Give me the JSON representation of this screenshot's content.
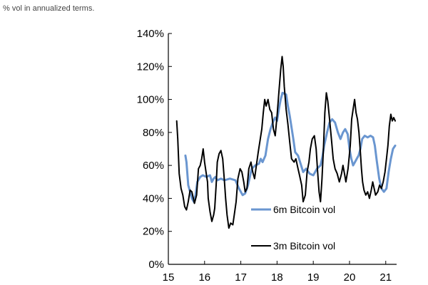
{
  "chart_data": {
    "type": "line",
    "subtitle": "% vol in annualized terms.",
    "title": "",
    "xlabel": "",
    "ylabel": "",
    "xlim": [
      15.0,
      21.3
    ],
    "ylim": [
      0,
      140
    ],
    "x_ticks": [
      15,
      16,
      17,
      18,
      19,
      20,
      21
    ],
    "x_tick_labels": [
      "15",
      "16",
      "17",
      "18",
      "19",
      "20",
      "21"
    ],
    "y_ticks": [
      0,
      20,
      40,
      60,
      80,
      100,
      120,
      140
    ],
    "y_tick_labels": [
      "0%",
      "20%",
      "40%",
      "60%",
      "80%",
      "100%",
      "120%",
      "140%"
    ],
    "grid": false,
    "legend_placement": "bottom-right inside",
    "series": [
      {
        "name": "6m Bitcoin vol",
        "color": "#6a96d0",
        "points": [
          [
            15.47,
            66
          ],
          [
            15.5,
            62
          ],
          [
            15.55,
            48
          ],
          [
            15.6,
            44
          ],
          [
            15.65,
            40
          ],
          [
            15.7,
            38
          ],
          [
            15.75,
            42
          ],
          [
            15.8,
            50
          ],
          [
            15.88,
            53
          ],
          [
            15.95,
            54
          ],
          [
            16.05,
            53
          ],
          [
            16.15,
            54
          ],
          [
            16.2,
            50
          ],
          [
            16.25,
            52
          ],
          [
            16.3,
            53
          ],
          [
            16.35,
            51
          ],
          [
            16.45,
            52
          ],
          [
            16.55,
            51
          ],
          [
            16.7,
            52
          ],
          [
            16.85,
            51
          ],
          [
            16.95,
            46
          ],
          [
            17.05,
            42
          ],
          [
            17.12,
            43
          ],
          [
            17.2,
            48
          ],
          [
            17.3,
            58
          ],
          [
            17.4,
            60
          ],
          [
            17.5,
            61
          ],
          [
            17.55,
            64
          ],
          [
            17.6,
            62
          ],
          [
            17.68,
            66
          ],
          [
            17.75,
            76
          ],
          [
            17.82,
            82
          ],
          [
            17.9,
            87
          ],
          [
            17.95,
            89
          ],
          [
            18.0,
            87
          ],
          [
            18.05,
            94
          ],
          [
            18.1,
            100
          ],
          [
            18.15,
            104
          ],
          [
            18.25,
            103
          ],
          [
            18.3,
            96
          ],
          [
            18.35,
            90
          ],
          [
            18.4,
            83
          ],
          [
            18.45,
            76
          ],
          [
            18.5,
            68
          ],
          [
            18.58,
            66
          ],
          [
            18.65,
            61
          ],
          [
            18.72,
            56
          ],
          [
            18.8,
            58
          ],
          [
            18.9,
            55
          ],
          [
            19.0,
            54
          ],
          [
            19.1,
            58
          ],
          [
            19.2,
            60
          ],
          [
            19.25,
            65
          ],
          [
            19.3,
            72
          ],
          [
            19.38,
            80
          ],
          [
            19.45,
            86
          ],
          [
            19.52,
            88
          ],
          [
            19.6,
            86
          ],
          [
            19.68,
            80
          ],
          [
            19.75,
            76
          ],
          [
            19.82,
            80
          ],
          [
            19.88,
            82
          ],
          [
            19.95,
            79
          ],
          [
            20.0,
            70
          ],
          [
            20.05,
            64
          ],
          [
            20.1,
            60
          ],
          [
            20.15,
            62
          ],
          [
            20.2,
            64
          ],
          [
            20.25,
            66
          ],
          [
            20.3,
            70
          ],
          [
            20.35,
            76
          ],
          [
            20.42,
            78
          ],
          [
            20.5,
            77
          ],
          [
            20.58,
            78
          ],
          [
            20.65,
            77
          ],
          [
            20.7,
            72
          ],
          [
            20.75,
            63
          ],
          [
            20.82,
            52
          ],
          [
            20.88,
            46
          ],
          [
            20.95,
            44
          ],
          [
            21.02,
            46
          ],
          [
            21.08,
            56
          ],
          [
            21.14,
            64
          ],
          [
            21.2,
            70
          ],
          [
            21.26,
            72
          ]
        ]
      },
      {
        "name": "3m Bitcoin vol",
        "color": "#000000",
        "points": [
          [
            15.23,
            87
          ],
          [
            15.26,
            76
          ],
          [
            15.3,
            55
          ],
          [
            15.35,
            46
          ],
          [
            15.4,
            42
          ],
          [
            15.45,
            35
          ],
          [
            15.5,
            33
          ],
          [
            15.55,
            38
          ],
          [
            15.6,
            45
          ],
          [
            15.65,
            44
          ],
          [
            15.72,
            37
          ],
          [
            15.78,
            42
          ],
          [
            15.83,
            58
          ],
          [
            15.88,
            60
          ],
          [
            15.92,
            64
          ],
          [
            15.96,
            70
          ],
          [
            16.0,
            62
          ],
          [
            16.04,
            56
          ],
          [
            16.08,
            50
          ],
          [
            16.1,
            40
          ],
          [
            16.15,
            32
          ],
          [
            16.2,
            26
          ],
          [
            16.25,
            30
          ],
          [
            16.28,
            34
          ],
          [
            16.32,
            48
          ],
          [
            16.35,
            62
          ],
          [
            16.4,
            67
          ],
          [
            16.45,
            69
          ],
          [
            16.5,
            64
          ],
          [
            16.55,
            50
          ],
          [
            16.58,
            40
          ],
          [
            16.62,
            30
          ],
          [
            16.67,
            22
          ],
          [
            16.72,
            25
          ],
          [
            16.78,
            24
          ],
          [
            16.82,
            30
          ],
          [
            16.87,
            38
          ],
          [
            16.92,
            52
          ],
          [
            16.98,
            58
          ],
          [
            17.03,
            56
          ],
          [
            17.08,
            50
          ],
          [
            17.12,
            44
          ],
          [
            17.17,
            46
          ],
          [
            17.22,
            58
          ],
          [
            17.28,
            62
          ],
          [
            17.33,
            56
          ],
          [
            17.38,
            52
          ],
          [
            17.43,
            60
          ],
          [
            17.48,
            68
          ],
          [
            17.53,
            75
          ],
          [
            17.58,
            82
          ],
          [
            17.62,
            92
          ],
          [
            17.66,
            100
          ],
          [
            17.7,
            96
          ],
          [
            17.75,
            100
          ],
          [
            17.8,
            94
          ],
          [
            17.85,
            92
          ],
          [
            17.9,
            82
          ],
          [
            17.95,
            78
          ],
          [
            18.0,
            90
          ],
          [
            18.05,
            104
          ],
          [
            18.1,
            118
          ],
          [
            18.14,
            126
          ],
          [
            18.17,
            120
          ],
          [
            18.2,
            108
          ],
          [
            18.25,
            94
          ],
          [
            18.3,
            85
          ],
          [
            18.35,
            74
          ],
          [
            18.4,
            64
          ],
          [
            18.47,
            62
          ],
          [
            18.52,
            64
          ],
          [
            18.58,
            58
          ],
          [
            18.62,
            54
          ],
          [
            18.68,
            48
          ],
          [
            18.72,
            38
          ],
          [
            18.78,
            42
          ],
          [
            18.83,
            56
          ],
          [
            18.88,
            62
          ],
          [
            18.92,
            70
          ],
          [
            18.97,
            76
          ],
          [
            19.03,
            78
          ],
          [
            19.08,
            70
          ],
          [
            19.12,
            56
          ],
          [
            19.16,
            44
          ],
          [
            19.2,
            38
          ],
          [
            19.24,
            52
          ],
          [
            19.28,
            70
          ],
          [
            19.32,
            92
          ],
          [
            19.36,
            104
          ],
          [
            19.4,
            99
          ],
          [
            19.45,
            88
          ],
          [
            19.5,
            76
          ],
          [
            19.55,
            64
          ],
          [
            19.6,
            58
          ],
          [
            19.66,
            55
          ],
          [
            19.72,
            50
          ],
          [
            19.78,
            55
          ],
          [
            19.82,
            60
          ],
          [
            19.86,
            55
          ],
          [
            19.9,
            50
          ],
          [
            19.96,
            58
          ],
          [
            20.02,
            72
          ],
          [
            20.06,
            88
          ],
          [
            20.1,
            94
          ],
          [
            20.14,
            100
          ],
          [
            20.18,
            92
          ],
          [
            20.22,
            88
          ],
          [
            20.26,
            80
          ],
          [
            20.3,
            68
          ],
          [
            20.33,
            58
          ],
          [
            20.36,
            50
          ],
          [
            20.4,
            45
          ],
          [
            20.45,
            42
          ],
          [
            20.5,
            44
          ],
          [
            20.55,
            40
          ],
          [
            20.6,
            45
          ],
          [
            20.64,
            50
          ],
          [
            20.68,
            46
          ],
          [
            20.72,
            42
          ],
          [
            20.78,
            44
          ],
          [
            20.83,
            48
          ],
          [
            20.88,
            46
          ],
          [
            20.93,
            50
          ],
          [
            20.98,
            56
          ],
          [
            21.02,
            64
          ],
          [
            21.06,
            72
          ],
          [
            21.1,
            84
          ],
          [
            21.14,
            91
          ],
          [
            21.18,
            87
          ],
          [
            21.22,
            89
          ],
          [
            21.26,
            87
          ]
        ]
      }
    ]
  }
}
